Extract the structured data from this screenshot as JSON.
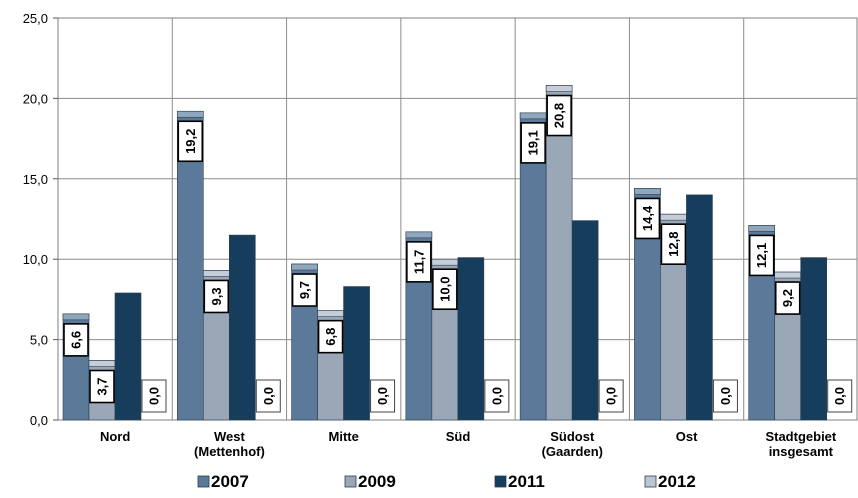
{
  "chart_data": {
    "type": "bar",
    "categories": [
      [
        "Nord"
      ],
      [
        "West",
        "(Mettenhof)"
      ],
      [
        "Mitte"
      ],
      [
        "Süd"
      ],
      [
        "Südost",
        "(Gaarden)"
      ],
      [
        "Ost"
      ],
      [
        "Stadtgebiet",
        "insgesamt"
      ]
    ],
    "series": [
      {
        "name": "2007",
        "values": [
          6.6,
          19.2,
          9.7,
          11.7,
          19.1,
          14.4,
          12.1
        ],
        "labels": [
          "6,6",
          "19,2",
          "9,7",
          "11,7",
          "19,1",
          "14,4",
          "12,1"
        ],
        "color": "#5b7a99",
        "cap": "#8fa6bd"
      },
      {
        "name": "2009",
        "values": [
          3.7,
          9.3,
          6.8,
          10.0,
          20.8,
          12.8,
          9.2
        ],
        "labels": [
          "3,7",
          "9,3",
          "6,8",
          "10,0",
          "20,8",
          "12,8",
          "9,2"
        ],
        "color": "#9aa7b6",
        "cap": "#c5ced8"
      },
      {
        "name": "2011",
        "values": [
          7.9,
          11.5,
          8.3,
          10.1,
          12.4,
          14.0,
          10.1
        ],
        "labels": null,
        "color": "#173d5c",
        "cap": null
      },
      {
        "name": "2012",
        "values": [
          0.0,
          0.0,
          0.0,
          0.0,
          0.0,
          0.0,
          0.0
        ],
        "labels": [
          "0,0",
          "0,0",
          "0,0",
          "0,0",
          "0,0",
          "0,0",
          "0,0"
        ],
        "color": "#bcc6d2",
        "cap": null
      }
    ],
    "yticks": [
      "0,0",
      "5,0",
      "10,0",
      "15,0",
      "20,0",
      "25,0"
    ],
    "ylim": [
      0,
      25
    ],
    "grid": true,
    "legend_position": "bottom"
  }
}
